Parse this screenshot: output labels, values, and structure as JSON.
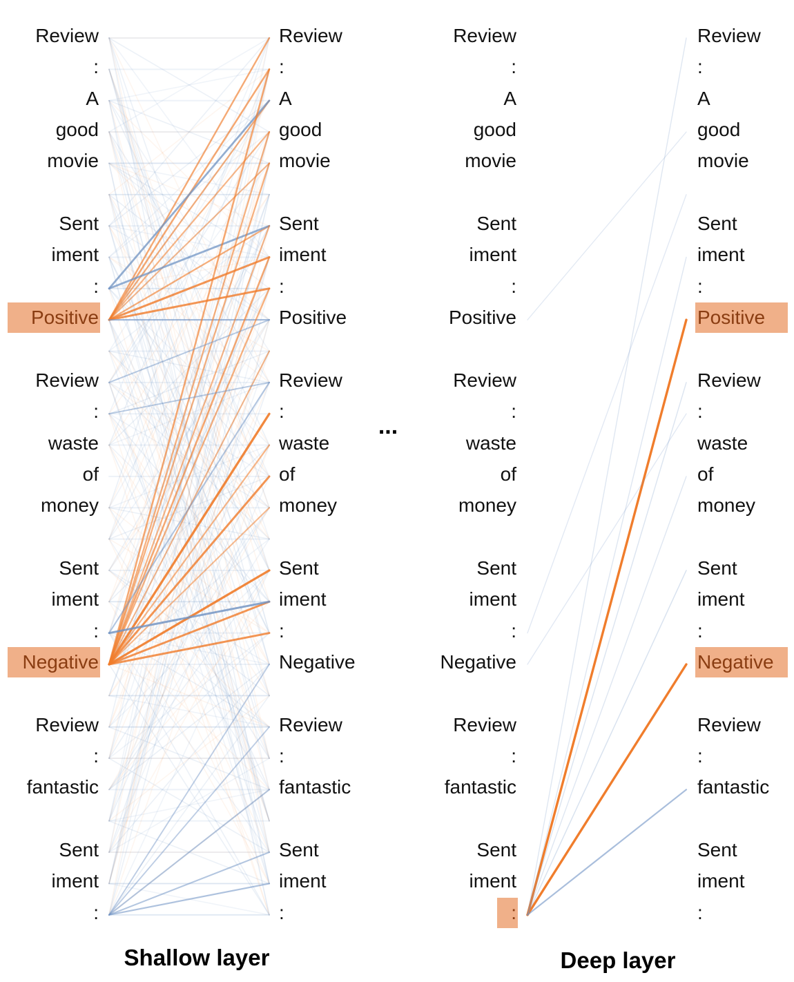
{
  "tokens": [
    "Review",
    ":",
    "A",
    "good",
    "movie",
    "",
    "Sent",
    "iment",
    ":",
    "Positive",
    "",
    "Review",
    ":",
    "waste",
    "of",
    "money",
    "",
    "Sent",
    "iment",
    ":",
    "Negative",
    "",
    "Review",
    ":",
    "fantastic",
    "",
    "Sent",
    "iment",
    ":"
  ],
  "panels": [
    {
      "caption": "Shallow layer",
      "highlight_source": [
        9,
        20
      ],
      "highlight_target": [],
      "strong_edges": [
        {
          "from": 9,
          "to": 0,
          "weight": 0.55,
          "color": "orange"
        },
        {
          "from": 9,
          "to": 1,
          "weight": 0.6,
          "color": "orange"
        },
        {
          "from": 9,
          "to": 2,
          "weight": 0.5,
          "color": "orange"
        },
        {
          "from": 9,
          "to": 3,
          "weight": 0.45,
          "color": "orange"
        },
        {
          "from": 9,
          "to": 4,
          "weight": 0.4,
          "color": "orange"
        },
        {
          "from": 9,
          "to": 7,
          "weight": 0.8,
          "color": "orange"
        },
        {
          "from": 9,
          "to": 8,
          "weight": 0.8,
          "color": "orange"
        },
        {
          "from": 9,
          "to": 6,
          "weight": 0.5,
          "color": "orange"
        },
        {
          "from": 8,
          "to": 6,
          "weight": 0.7,
          "color": "blue"
        },
        {
          "from": 8,
          "to": 2,
          "weight": 0.7,
          "color": "blue"
        },
        {
          "from": 9,
          "to": 9,
          "weight": 0.5,
          "color": "blue"
        },
        {
          "from": 20,
          "to": 12,
          "weight": 0.95,
          "color": "orange"
        },
        {
          "from": 20,
          "to": 14,
          "weight": 0.8,
          "color": "orange"
        },
        {
          "from": 20,
          "to": 17,
          "weight": 0.95,
          "color": "orange"
        },
        {
          "from": 20,
          "to": 18,
          "weight": 0.8,
          "color": "orange"
        },
        {
          "from": 20,
          "to": 19,
          "weight": 0.8,
          "color": "orange"
        },
        {
          "from": 20,
          "to": 1,
          "weight": 0.6,
          "color": "orange"
        },
        {
          "from": 20,
          "to": 3,
          "weight": 0.5,
          "color": "orange"
        },
        {
          "from": 20,
          "to": 4,
          "weight": 0.5,
          "color": "orange"
        },
        {
          "from": 20,
          "to": 6,
          "weight": 0.45,
          "color": "orange"
        },
        {
          "from": 20,
          "to": 7,
          "weight": 0.6,
          "color": "orange"
        },
        {
          "from": 20,
          "to": 8,
          "weight": 0.5,
          "color": "orange"
        },
        {
          "from": 20,
          "to": 10,
          "weight": 0.4,
          "color": "orange"
        },
        {
          "from": 20,
          "to": 13,
          "weight": 0.45,
          "color": "orange"
        },
        {
          "from": 20,
          "to": 15,
          "weight": 0.4,
          "color": "orange"
        },
        {
          "from": 19,
          "to": 18,
          "weight": 0.8,
          "color": "blue"
        },
        {
          "from": 19,
          "to": 11,
          "weight": 0.4,
          "color": "blue"
        },
        {
          "from": 28,
          "to": 24,
          "weight": 0.4,
          "color": "blue"
        },
        {
          "from": 28,
          "to": 26,
          "weight": 0.4,
          "color": "blue"
        },
        {
          "from": 28,
          "to": 27,
          "weight": 0.45,
          "color": "blue"
        },
        {
          "from": 28,
          "to": 22,
          "weight": 0.3,
          "color": "blue"
        },
        {
          "from": 28,
          "to": 20,
          "weight": 0.3,
          "color": "blue"
        },
        {
          "from": 12,
          "to": 11,
          "weight": 0.35,
          "color": "blue"
        },
        {
          "from": 11,
          "to": 9,
          "weight": 0.35,
          "color": "blue"
        }
      ]
    },
    {
      "caption": "Deep layer",
      "highlight_source": [
        28
      ],
      "highlight_target": [
        9,
        20
      ],
      "strong_edges": [
        {
          "from": 28,
          "to": 9,
          "weight": 1.0,
          "color": "orange"
        },
        {
          "from": 28,
          "to": 20,
          "weight": 1.0,
          "color": "orange"
        },
        {
          "from": 28,
          "to": 24,
          "weight": 0.45,
          "color": "blue"
        },
        {
          "from": 28,
          "to": 0,
          "weight": 0.08,
          "color": "blue"
        },
        {
          "from": 28,
          "to": 7,
          "weight": 0.08,
          "color": "blue"
        },
        {
          "from": 28,
          "to": 11,
          "weight": 0.1,
          "color": "blue"
        },
        {
          "from": 28,
          "to": 17,
          "weight": 0.12,
          "color": "blue"
        },
        {
          "from": 28,
          "to": 14,
          "weight": 0.08,
          "color": "blue"
        },
        {
          "from": 19,
          "to": 5,
          "weight": 0.06,
          "color": "blue"
        },
        {
          "from": 20,
          "to": 12,
          "weight": 0.06,
          "color": "blue"
        },
        {
          "from": 9,
          "to": 3,
          "weight": 0.05,
          "color": "blue"
        }
      ]
    }
  ],
  "separator": "...",
  "colors": {
    "orange": "#f07d2c",
    "blue": "#6f93c4",
    "highlight": "#f0b089"
  }
}
